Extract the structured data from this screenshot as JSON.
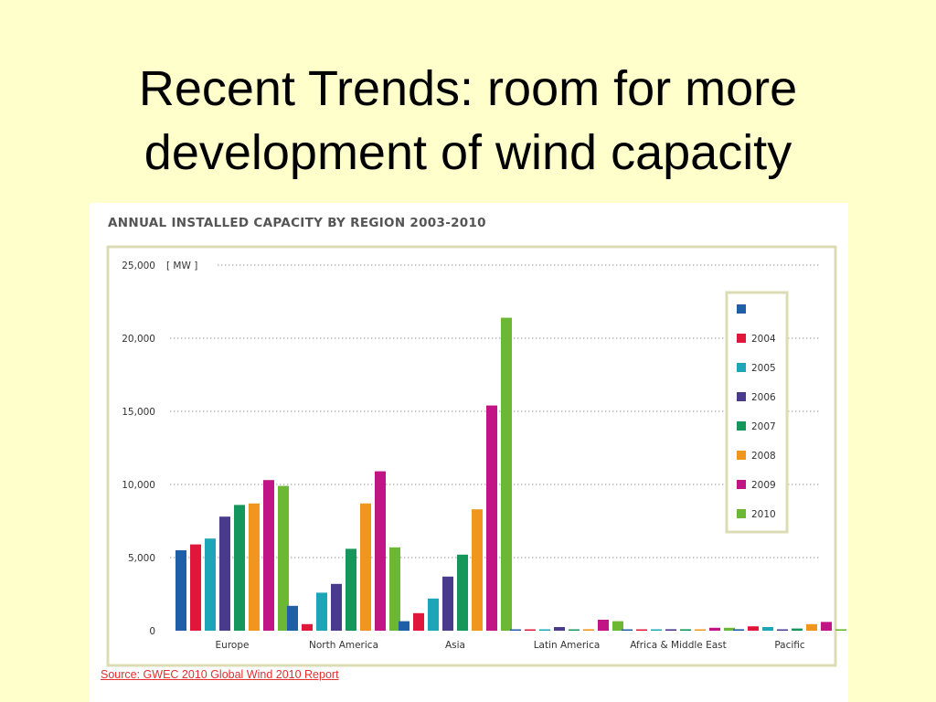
{
  "slide": {
    "title_line1": "Recent Trends: room for more",
    "title_line2": "development of wind capacity"
  },
  "source": {
    "label": "Source: GWEC 2010 Global Wind 2010 Report"
  },
  "chart_data": {
    "type": "bar",
    "title": "ANNUAL INSTALLED CAPACITY BY REGION 2003-2010",
    "unit": "[ MW ]",
    "ylim": [
      0,
      25000
    ],
    "yticks": [
      0,
      5000,
      10000,
      15000,
      20000,
      25000
    ],
    "ytick_labels": [
      "0",
      "5,000",
      "10,000",
      "15,000",
      "20,000",
      "25,000"
    ],
    "grid": true,
    "legend_position": "right",
    "categories": [
      "Europe",
      "North America",
      "Asia",
      "Latin America",
      "Africa & Middle East",
      "Pacific"
    ],
    "series": [
      {
        "name": "",
        "color": "#1f5fa8",
        "values": [
          5500,
          1700,
          650,
          50,
          30,
          100
        ]
      },
      {
        "name": "2004",
        "color": "#e0173a",
        "values": [
          5900,
          450,
          1200,
          50,
          30,
          300
        ]
      },
      {
        "name": "2005",
        "color": "#1ea5b8",
        "values": [
          6300,
          2600,
          2200,
          50,
          30,
          250
        ]
      },
      {
        "name": "2006",
        "color": "#4a3a8c",
        "values": [
          7800,
          3200,
          3700,
          250,
          100,
          50
        ]
      },
      {
        "name": "2007",
        "color": "#15965a",
        "values": [
          8600,
          5600,
          5200,
          50,
          100,
          150
        ]
      },
      {
        "name": "2008",
        "color": "#f0961e",
        "values": [
          8700,
          8700,
          8300,
          100,
          50,
          450
        ]
      },
      {
        "name": "2009",
        "color": "#c21585",
        "values": [
          10300,
          10900,
          15400,
          750,
          200,
          600
        ]
      },
      {
        "name": "2010",
        "color": "#6cb834",
        "values": [
          9900,
          5700,
          21400,
          650,
          200,
          100
        ]
      }
    ]
  }
}
